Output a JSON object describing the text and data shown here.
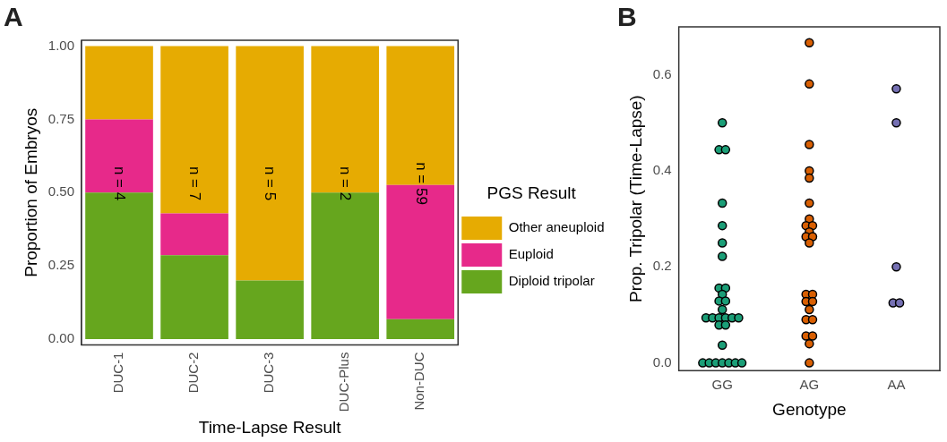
{
  "chart_data": [
    {
      "type": "bar",
      "title": "A",
      "xlabel": "Time-Lapse Result",
      "ylabel": "Proportion of Embryos",
      "legend_title": "PGS Result",
      "legend": "right",
      "stacked": true,
      "grid": false,
      "categories": [
        "DUC‑1",
        "DUC‑2",
        "DUC‑3",
        "DUC‑Plus",
        "Non‑DUC"
      ],
      "ylim": [
        -0.02,
        1.02
      ],
      "yticks": [
        {
          "value": 0,
          "label": "0.00"
        },
        {
          "value": 0.25,
          "label": "0.25"
        },
        {
          "value": 0.5,
          "label": "0.50"
        },
        {
          "value": 0.75,
          "label": "0.75"
        },
        {
          "value": 1,
          "label": "1.00"
        }
      ],
      "series": [
        {
          "name": "Diploid tripolar",
          "color": "#66a61e",
          "values": [
            0.5,
            0.286,
            0.2,
            0.5,
            0.068
          ]
        },
        {
          "name": "Euploid",
          "color": "#e7298a",
          "values": [
            0.25,
            0.143,
            0,
            0,
            0.458
          ]
        },
        {
          "name": "Other aneuploid",
          "color": "#e6ab02",
          "values": [
            0.25,
            0.571,
            0.8,
            0.5,
            0.474
          ]
        }
      ],
      "annotations": [
        "n = 4",
        "n = 7",
        "n = 5",
        "n = 2",
        "n = 59"
      ]
    },
    {
      "type": "scatter",
      "title": "B",
      "xlabel": "Genotype",
      "ylabel": "Prop. Tripolar (Time-Lapse)",
      "grid": false,
      "legend": false,
      "marker": "circle",
      "categories": [
        "GG",
        "AG",
        "AA"
      ],
      "ylim": [
        -0.016,
        0.7
      ],
      "yticks": [
        {
          "value": 0,
          "label": "0.0"
        },
        {
          "value": 0.2,
          "label": "0.2"
        },
        {
          "value": 0.4,
          "label": "0.4"
        },
        {
          "value": 0.6,
          "label": "0.6"
        }
      ],
      "series": [
        {
          "color": "#1b9e77",
          "x": [
            "GG",
            "GG",
            "GG",
            "GG",
            "GG",
            "GG",
            "GG",
            "GG",
            "GG",
            "GG",
            "GG",
            "GG",
            "GG",
            "GG",
            "GG",
            "GG",
            "GG",
            "GG",
            "GG",
            "GG",
            "GG",
            "GG",
            "GG",
            "GG",
            "GG",
            "GG",
            "GG",
            "GG",
            "GG"
          ],
          "values": [
            0.5,
            0.444,
            0.444,
            0.333,
            0.286,
            0.25,
            0.222,
            0.156,
            0.156,
            0.143,
            0.129,
            0.129,
            0.111,
            0.094,
            0.094,
            0.094,
            0.094,
            0.094,
            0.094,
            0.079,
            0.079,
            0.037,
            0,
            0,
            0,
            0,
            0,
            0,
            0
          ]
        },
        {
          "color": "#d95f02",
          "x": [
            "AG",
            "AG",
            "AG",
            "AG",
            "AG",
            "AG",
            "AG",
            "AG",
            "AG",
            "AG",
            "AG",
            "AG",
            "AG",
            "AG",
            "AG",
            "AG",
            "AG",
            "AG",
            "AG",
            "AG",
            "AG",
            "AG",
            "AG",
            "AG"
          ],
          "values": [
            0.667,
            0.581,
            0.455,
            0.4,
            0.385,
            0.333,
            0.3,
            0.286,
            0.286,
            0.273,
            0.263,
            0.263,
            0.25,
            0.143,
            0.143,
            0.128,
            0.128,
            0.111,
            0.09,
            0.09,
            0.056,
            0.056,
            0.04,
            0
          ]
        },
        {
          "color": "#7570b3",
          "x": [
            "AA",
            "AA",
            "AA",
            "AA",
            "AA"
          ],
          "values": [
            0.571,
            0.5,
            0.2,
            0.125,
            0.125
          ]
        }
      ]
    }
  ]
}
